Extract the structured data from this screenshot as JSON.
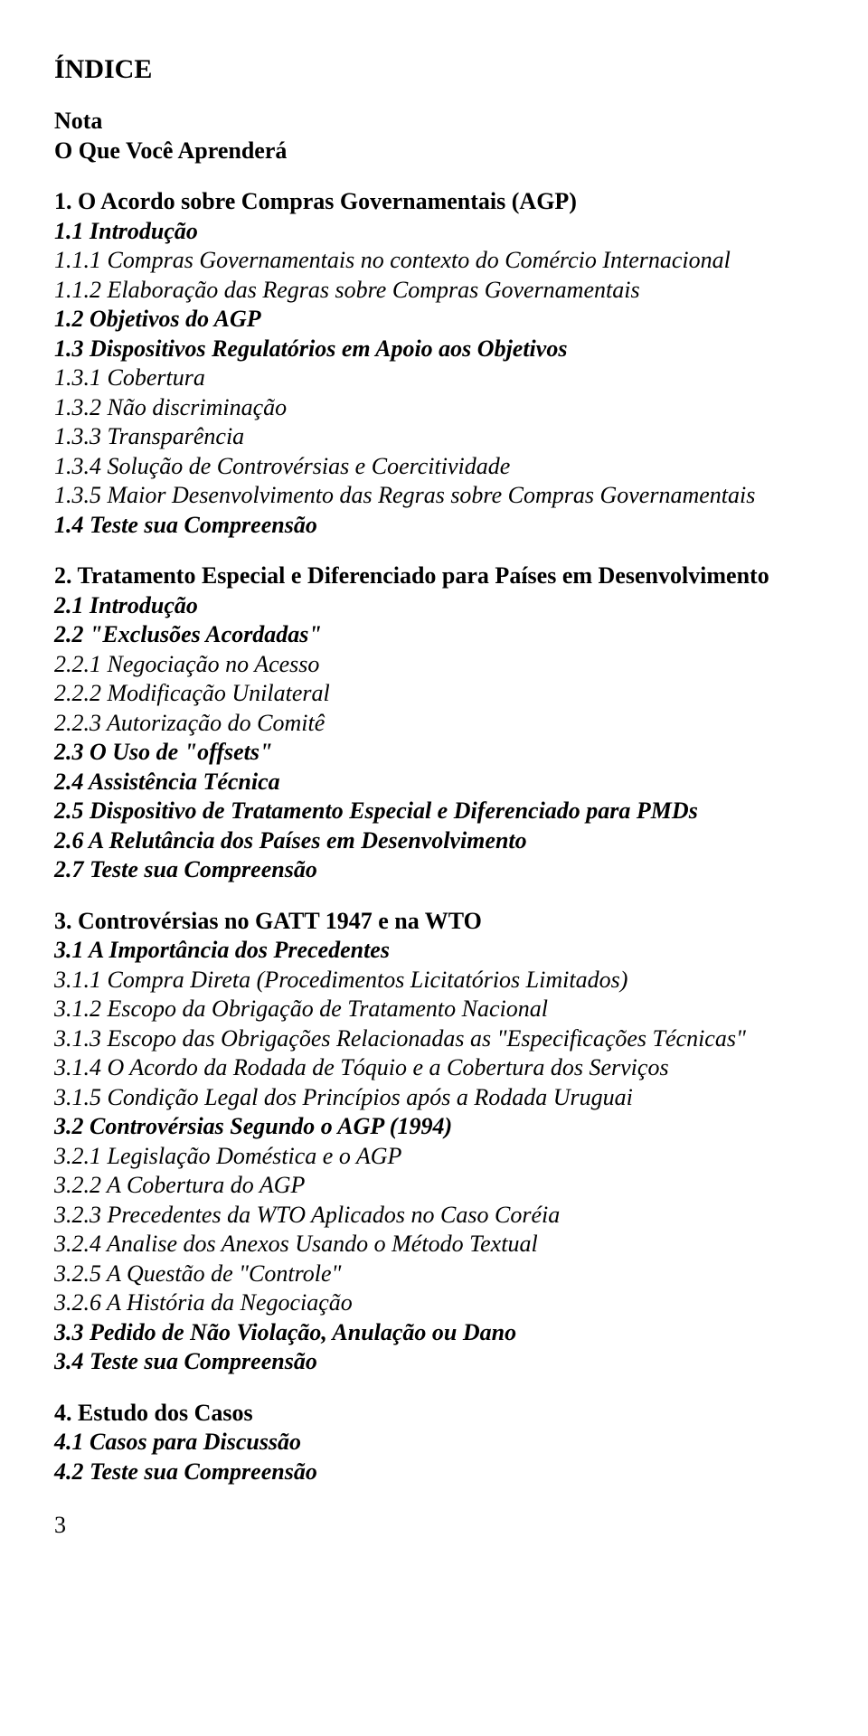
{
  "title": "ÍNDICE",
  "intro": {
    "nota": "Nota",
    "aprendera": "O Que Você Aprenderá"
  },
  "s1": {
    "h": "1. O Acordo sobre Compras Governamentais (AGP)",
    "i11": "1.1 Introdução",
    "i111": "1.1.1 Compras Governamentais no contexto do Comércio Internacional",
    "i112": "1.1.2 Elaboração das Regras sobre Compras Governamentais",
    "i12": "1.2 Objetivos do AGP",
    "i13": "1.3 Dispositivos Regulatórios em Apoio aos Objetivos",
    "i131": "1.3.1 Cobertura",
    "i132": "1.3.2 Não discriminação",
    "i133": "1.3.3 Transparência",
    "i134": "1.3.4 Solução de Controvérsias e Coercitividade",
    "i135": "1.3.5 Maior Desenvolvimento das Regras sobre Compras Governamentais",
    "i14": "1.4 Teste sua Compreensão"
  },
  "s2": {
    "h": "2. Tratamento Especial e Diferenciado para Países em Desenvolvimento",
    "i21": "2.1 Introdução",
    "i22": "2.2 \"Exclusões Acordadas\"",
    "i221": "2.2.1 Negociação no Acesso",
    "i222": "2.2.2 Modificação Unilateral",
    "i223": "2.2.3 Autorização do Comitê",
    "i23": "2.3 O Uso de \"offsets\"",
    "i24": "2.4 Assistência Técnica",
    "i25": "2.5 Dispositivo de Tratamento Especial e Diferenciado para PMDs",
    "i26": "2.6 A Relutância dos Países em Desenvolvimento",
    "i27": "2.7 Teste sua Compreensão"
  },
  "s3": {
    "h": "3. Controvérsias no GATT 1947 e na WTO",
    "i31": "3.1 A Importância dos Precedentes",
    "i311": "3.1.1 Compra Direta (Procedimentos Licitatórios Limitados)",
    "i312": "3.1.2 Escopo da Obrigação de Tratamento Nacional",
    "i313": "3.1.3 Escopo das Obrigações Relacionadas as \"Especificações Técnicas\"",
    "i314": "3.1.4 O Acordo da Rodada de Tóquio e a Cobertura dos Serviços",
    "i315": "3.1.5 Condição Legal dos Princípios após a Rodada Uruguai",
    "i32": "3.2 Controvérsias Segundo o AGP (1994)",
    "i321": "3.2.1 Legislação Doméstica e o AGP",
    "i322": "3.2.2 A Cobertura do AGP",
    "i323": "3.2.3 Precedentes da WTO Aplicados no Caso Coréia",
    "i324": "3.2.4 Analise dos Anexos Usando o Método Textual",
    "i325": "3.2.5 A Questão de \"Controle\"",
    "i326": "3.2.6 A História da Negociação",
    "i33": "3.3 Pedido de Não Violação, Anulação ou Dano",
    "i34": "3.4 Teste sua Compreensão"
  },
  "s4": {
    "h": "4. Estudo dos Casos",
    "i41": "4.1 Casos para Discussão",
    "i42": "4.2 Teste sua Compreensão"
  },
  "page": "3"
}
